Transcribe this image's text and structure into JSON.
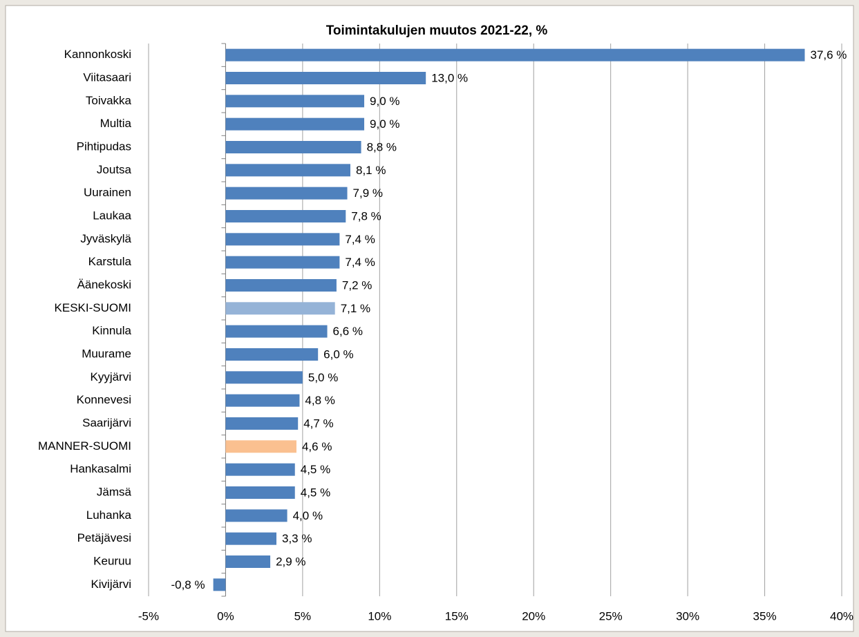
{
  "chart_data": {
    "type": "barh",
    "title": "Toimintakulujen muutos 2021-22, %",
    "categories": [
      "Kannonkoski",
      "Viitasaari",
      "Toivakka",
      "Multia",
      "Pihtipudas",
      "Joutsa",
      "Uurainen",
      "Laukaa",
      "Jyväskylä",
      "Karstula",
      "Äänekoski",
      "KESKI-SUOMI",
      "Kinnula",
      "Muurame",
      "Kyyjärvi",
      "Konnevesi",
      "Saarijärvi",
      "MANNER-SUOMI",
      "Hankasalmi",
      "Jämsä",
      "Luhanka",
      "Petäjävesi",
      "Keuruu",
      "Kivijärvi"
    ],
    "values": [
      37.6,
      13.0,
      9.0,
      9.0,
      8.8,
      8.1,
      7.9,
      7.8,
      7.4,
      7.4,
      7.2,
      7.1,
      6.6,
      6.0,
      5.0,
      4.8,
      4.7,
      4.6,
      4.5,
      4.5,
      4.0,
      3.3,
      2.9,
      -0.8
    ],
    "value_labels": [
      "37,6 %",
      "13,0 %",
      "9,0 %",
      "9,0 %",
      "8,8 %",
      "8,1 %",
      "7,9 %",
      "7,8 %",
      "7,4 %",
      "7,4 %",
      "7,2 %",
      "7,1 %",
      "6,6 %",
      "6,0 %",
      "5,0 %",
      "4,8 %",
      "4,7 %",
      "4,6 %",
      "4,5 %",
      "4,5 %",
      "4,0 %",
      "3,3 %",
      "2,9 %",
      "-0,8 %"
    ],
    "colors": [
      "#4f81bd",
      "#4f81bd",
      "#4f81bd",
      "#4f81bd",
      "#4f81bd",
      "#4f81bd",
      "#4f81bd",
      "#4f81bd",
      "#4f81bd",
      "#4f81bd",
      "#4f81bd",
      "#95b3d7",
      "#4f81bd",
      "#4f81bd",
      "#4f81bd",
      "#4f81bd",
      "#4f81bd",
      "#fac090",
      "#4f81bd",
      "#4f81bd",
      "#4f81bd",
      "#4f81bd",
      "#4f81bd",
      "#4f81bd"
    ],
    "xlim": [
      -5,
      40
    ],
    "xticks": [
      {
        "value": -5,
        "label": "-5%"
      },
      {
        "value": 0,
        "label": "0%"
      },
      {
        "value": 5,
        "label": "5%"
      },
      {
        "value": 10,
        "label": "10%"
      },
      {
        "value": 15,
        "label": "15%"
      },
      {
        "value": 20,
        "label": "20%"
      },
      {
        "value": 25,
        "label": "25%"
      },
      {
        "value": 30,
        "label": "30%"
      },
      {
        "value": 35,
        "label": "35%"
      },
      {
        "value": 40,
        "label": "40%"
      }
    ],
    "grid": true
  }
}
